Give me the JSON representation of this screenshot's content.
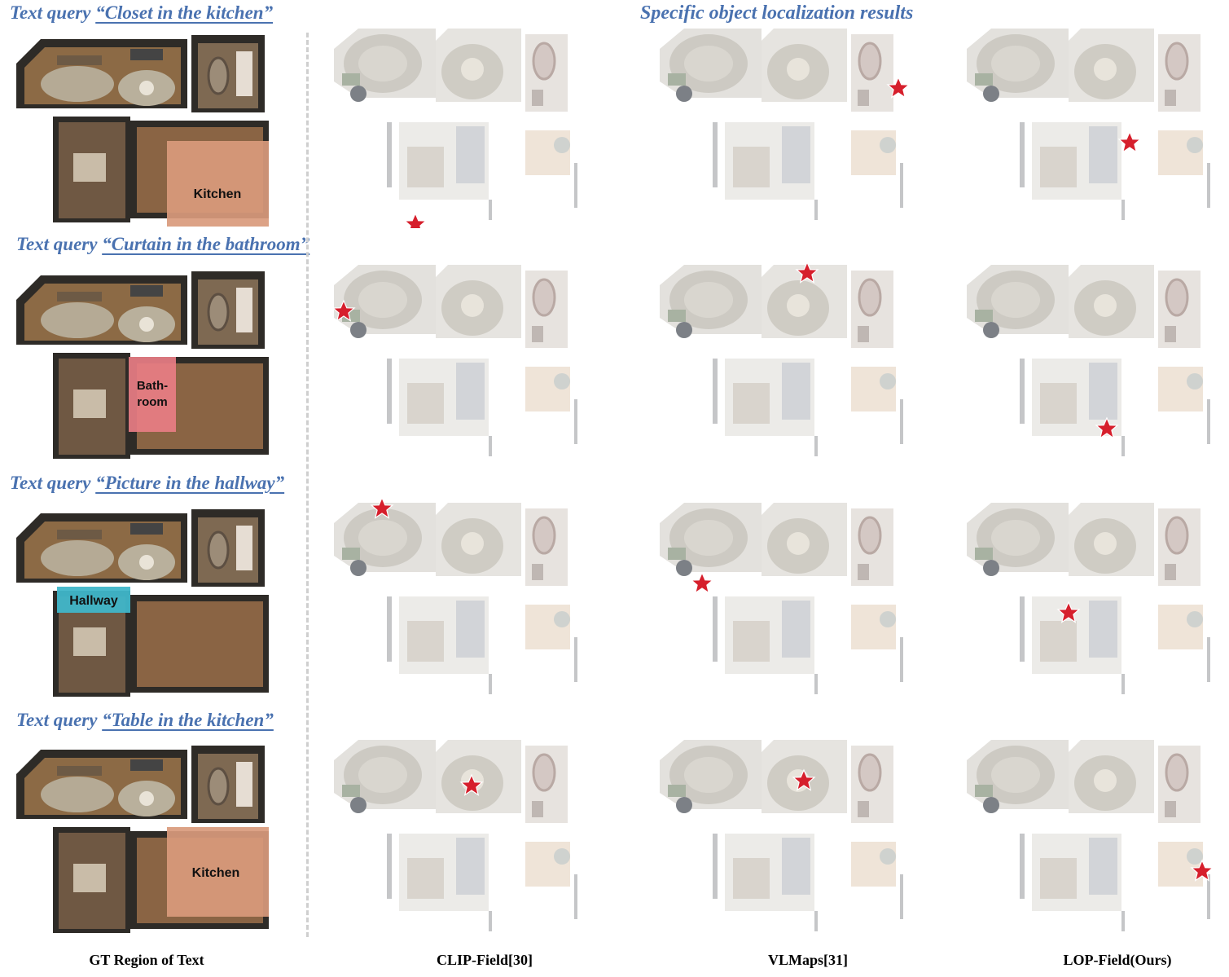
{
  "header": "Specific object localization results",
  "query_prefix": "Text query",
  "rows": [
    {
      "query": "“Closet in the kitchen”",
      "region_label": "Kitchen",
      "region": "kitchen"
    },
    {
      "query": "“Curtain in the bathroom”",
      "region_label_1": "Bath-",
      "region_label_2": "room",
      "region": "bathroom"
    },
    {
      "query": "“Picture in the hallway”",
      "region_label": "Hallway",
      "region": "hallway"
    },
    {
      "query": "“Table in the kitchen”",
      "region_label": "Kitchen",
      "region": "kitchen"
    }
  ],
  "captions": {
    "gt": "GT Region of Text",
    "clip": "CLIP-Field[30]",
    "vlmaps": "VLMaps[31]",
    "lop": "LOP-Field(Ours)"
  },
  "colors": {
    "title_blue": "#4a72b0",
    "star_red": "#d61f2c",
    "kitchen_highlight": "#d99a7c",
    "bathroom_highlight": "#e87d84",
    "hallway_highlight": "#3fb6c9"
  }
}
